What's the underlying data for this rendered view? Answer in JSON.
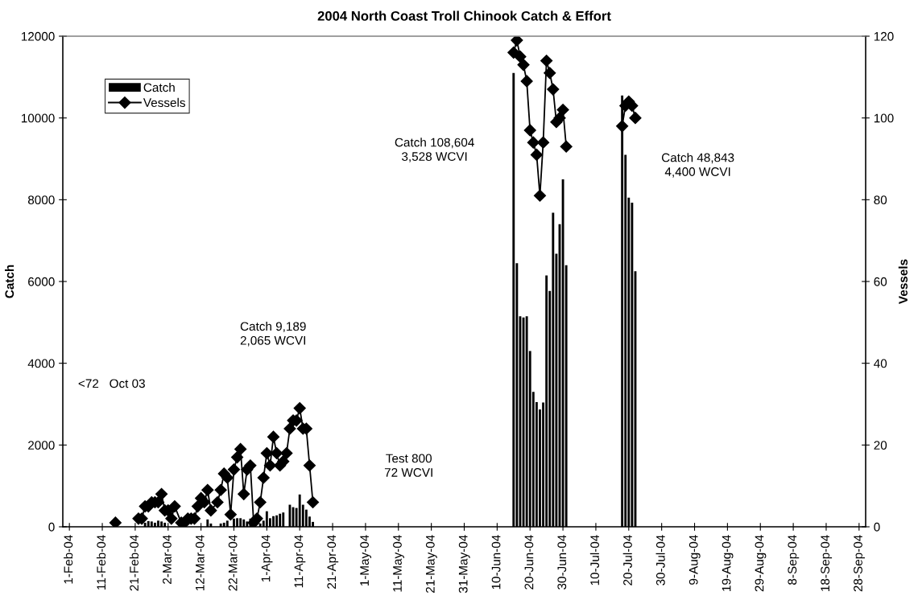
{
  "chart_data": {
    "type": "bar",
    "title": "2004 North Coast Troll Chinook Catch & Effort",
    "ylabel": "Catch",
    "y2label": "Vessels",
    "xlim": [
      "2004-01-30",
      "2004-09-30"
    ],
    "xticks": [
      {
        "value": "2004-02-01",
        "label": "1-Feb-04"
      },
      {
        "value": "2004-02-11",
        "label": "11-Feb-04"
      },
      {
        "value": "2004-02-21",
        "label": "21-Feb-04"
      },
      {
        "value": "2004-03-02",
        "label": "2-Mar-04"
      },
      {
        "value": "2004-03-12",
        "label": "12-Mar-04"
      },
      {
        "value": "2004-03-22",
        "label": "22-Mar-04"
      },
      {
        "value": "2004-04-01",
        "label": "1-Apr-04"
      },
      {
        "value": "2004-04-11",
        "label": "11-Apr-04"
      },
      {
        "value": "2004-04-21",
        "label": "21-Apr-04"
      },
      {
        "value": "2004-05-01",
        "label": "1-May-04"
      },
      {
        "value": "2004-05-11",
        "label": "11-May-04"
      },
      {
        "value": "2004-05-21",
        "label": "21-May-04"
      },
      {
        "value": "2004-05-31",
        "label": "31-May-04"
      },
      {
        "value": "2004-06-10",
        "label": "10-Jun-04"
      },
      {
        "value": "2004-06-20",
        "label": "20-Jun-04"
      },
      {
        "value": "2004-06-30",
        "label": "30-Jun-04"
      },
      {
        "value": "2004-07-10",
        "label": "10-Jul-04"
      },
      {
        "value": "2004-07-20",
        "label": "20-Jul-04"
      },
      {
        "value": "2004-07-30",
        "label": "30-Jul-04"
      },
      {
        "value": "2004-08-09",
        "label": "9-Aug-04"
      },
      {
        "value": "2004-08-19",
        "label": "19-Aug-04"
      },
      {
        "value": "2004-08-29",
        "label": "29-Aug-04"
      },
      {
        "value": "2004-09-08",
        "label": "8-Sep-04"
      },
      {
        "value": "2004-09-18",
        "label": "18-Sep-04"
      },
      {
        "value": "2004-09-28",
        "label": "28-Sep-04"
      }
    ],
    "ylim": [
      0,
      12000
    ],
    "yticks": [
      0,
      2000,
      4000,
      6000,
      8000,
      10000,
      12000
    ],
    "y2lim": [
      0,
      120
    ],
    "y2ticks": [
      0,
      20,
      40,
      60,
      80,
      100,
      120
    ],
    "grid": false,
    "legend": "top left",
    "series": [
      {
        "name": "Catch",
        "color": "#000000",
        "x": [
          "2004-02-24",
          "2004-02-25",
          "2004-02-26",
          "2004-02-27",
          "2004-02-28",
          "2004-02-29",
          "2004-03-01",
          "2004-03-14",
          "2004-03-15",
          "2004-03-18",
          "2004-03-19",
          "2004-03-20",
          "2004-03-22",
          "2004-03-23",
          "2004-03-24",
          "2004-03-25",
          "2004-03-26",
          "2004-03-27",
          "2004-03-30",
          "2004-03-31",
          "2004-04-01",
          "2004-04-02",
          "2004-04-03",
          "2004-04-04",
          "2004-04-05",
          "2004-04-06",
          "2004-04-08",
          "2004-04-09",
          "2004-04-10",
          "2004-04-11",
          "2004-04-12",
          "2004-04-13",
          "2004-04-14",
          "2004-04-15",
          "2004-06-15",
          "2004-06-16",
          "2004-06-17",
          "2004-06-18",
          "2004-06-19",
          "2004-06-20",
          "2004-06-21",
          "2004-06-22",
          "2004-06-23",
          "2004-06-24",
          "2004-06-25",
          "2004-06-26",
          "2004-06-27",
          "2004-06-28",
          "2004-06-29",
          "2004-06-30",
          "2004-07-01",
          "2004-07-18",
          "2004-07-19",
          "2004-07-20",
          "2004-07-21",
          "2004-07-22"
        ],
        "values": [
          100,
          140,
          130,
          100,
          150,
          130,
          100,
          180,
          80,
          80,
          100,
          150,
          200,
          210,
          210,
          180,
          130,
          200,
          80,
          150,
          380,
          210,
          260,
          280,
          320,
          350,
          540,
          480,
          460,
          790,
          540,
          420,
          250,
          120,
          11100,
          6450,
          5150,
          5120,
          5150,
          4300,
          3300,
          3050,
          2870,
          3040,
          6150,
          5770,
          7680,
          6680,
          7400,
          8500,
          6400,
          10550,
          9100,
          8050,
          7930,
          6250
        ]
      },
      {
        "name": "Vessels",
        "type": "line",
        "axis": "y2",
        "color": "#000000",
        "marker": "diamond",
        "line_style": "solid",
        "x": [
          "2004-02-15",
          "2004-02-16",
          "2004-02-22",
          "2004-02-23",
          "2004-02-24",
          "2004-02-25",
          "2004-02-26",
          "2004-02-27",
          "2004-02-28",
          "2004-02-29",
          "2004-03-01",
          "2004-03-02",
          "2004-03-03",
          "2004-03-04",
          "2004-03-06",
          "2004-03-07",
          "2004-03-08",
          "2004-03-09",
          "2004-03-10",
          "2004-03-11",
          "2004-03-12",
          "2004-03-13",
          "2004-03-14",
          "2004-03-15",
          "2004-03-17",
          "2004-03-18",
          "2004-03-19",
          "2004-03-20",
          "2004-03-21",
          "2004-03-22",
          "2004-03-23",
          "2004-03-24",
          "2004-03-25",
          "2004-03-26",
          "2004-03-27",
          "2004-03-28",
          "2004-03-29",
          "2004-03-30",
          "2004-03-31",
          "2004-04-01",
          "2004-04-02",
          "2004-04-03",
          "2004-04-04",
          "2004-04-05",
          "2004-04-06",
          "2004-04-07",
          "2004-04-08",
          "2004-04-09",
          "2004-04-10",
          "2004-04-11",
          "2004-04-12",
          "2004-04-13",
          "2004-04-14",
          "2004-04-15",
          "2004-04-16",
          "2004-06-15",
          "2004-06-16",
          "2004-06-17",
          "2004-06-18",
          "2004-06-19",
          "2004-06-20",
          "2004-06-21",
          "2004-06-22",
          "2004-06-23",
          "2004-06-24",
          "2004-06-25",
          "2004-06-26",
          "2004-06-27",
          "2004-06-28",
          "2004-06-29",
          "2004-06-30",
          "2004-07-01",
          "2004-07-02",
          "2004-07-18",
          "2004-07-19",
          "2004-07-20",
          "2004-07-21",
          "2004-07-22"
        ],
        "values": [
          1,
          null,
          2,
          2,
          5,
          5,
          6,
          6,
          6,
          8,
          4,
          4,
          2,
          5,
          1,
          1,
          2,
          2,
          2,
          5,
          7,
          6,
          9,
          4,
          6,
          9,
          13,
          12,
          3,
          14,
          17,
          19,
          8,
          14,
          15,
          1,
          2,
          6,
          12,
          18,
          15,
          22,
          18,
          15,
          16,
          18,
          24,
          26,
          26,
          29,
          24,
          24,
          15,
          6,
          null,
          116,
          119,
          115,
          113,
          109,
          97,
          94,
          91,
          81,
          94,
          114,
          111,
          107,
          99,
          100,
          102,
          93,
          null,
          98,
          103,
          104,
          103,
          100
        ]
      }
    ],
    "annotations": [
      "<72   Oct 03",
      "Catch 9,189\n2,065 WCVI",
      "Test 800\n72 WCVI",
      "Catch 108,604\n3,528 WCVI",
      "Catch 48,843\n4,400 WCVI"
    ]
  }
}
